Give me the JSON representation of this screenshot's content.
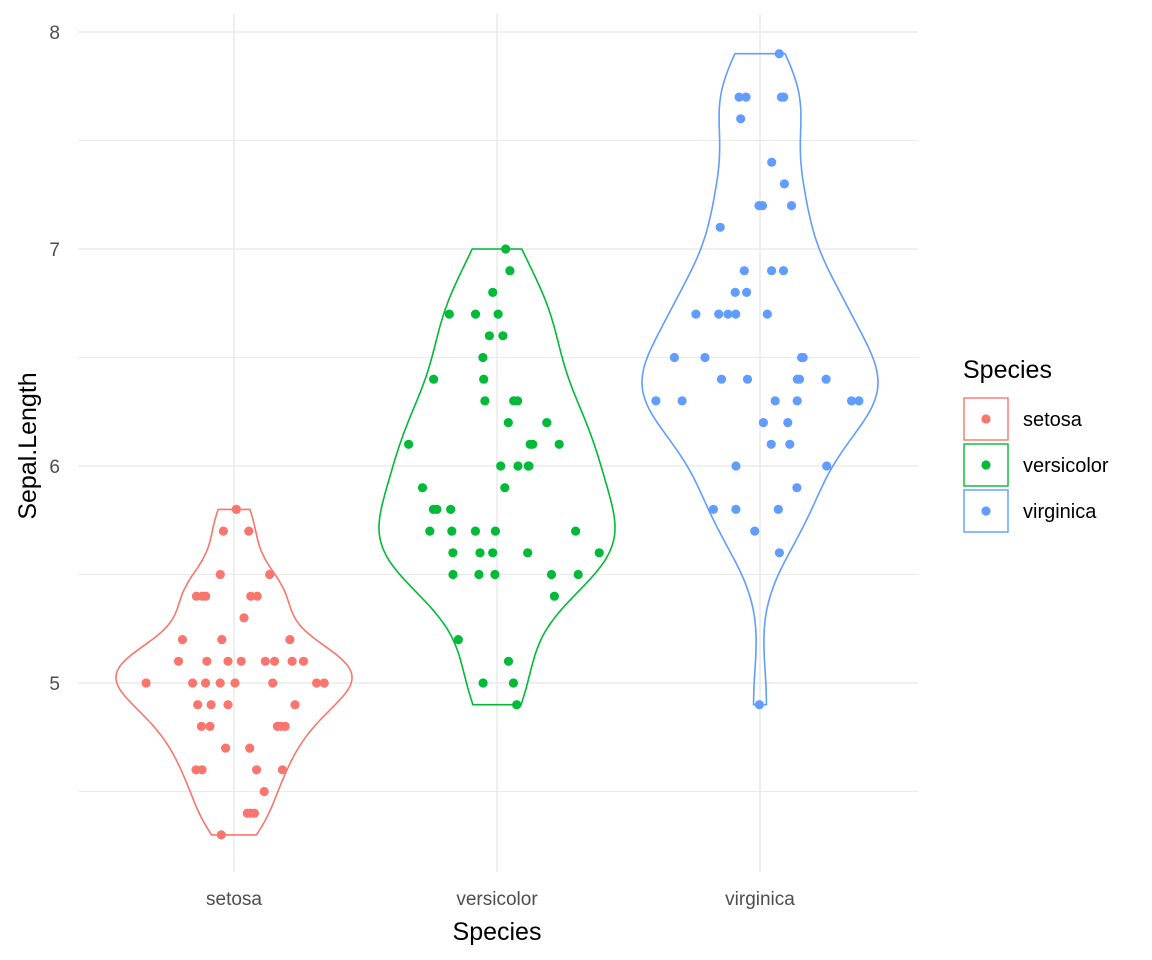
{
  "chart_data": {
    "type": "violin",
    "xlabel": "Species",
    "ylabel": "Sepal.Length",
    "categories": [
      "setosa",
      "versicolor",
      "virginica"
    ],
    "ylim": [
      4.2,
      8.08
    ],
    "y_ticks": [
      5,
      6,
      7,
      8
    ],
    "grid": true,
    "legend": {
      "title": "Species",
      "placement": "right"
    },
    "series": [
      {
        "name": "setosa",
        "color": "#F8766D",
        "values": [
          5.1,
          4.9,
          4.7,
          4.6,
          5.0,
          5.4,
          4.6,
          5.0,
          4.4,
          4.9,
          5.4,
          4.8,
          4.8,
          4.3,
          5.8,
          5.7,
          5.4,
          5.1,
          5.7,
          5.1,
          5.4,
          5.1,
          4.6,
          5.1,
          4.8,
          5.0,
          5.0,
          5.2,
          5.2,
          4.7,
          4.8,
          5.4,
          5.2,
          5.5,
          4.9,
          5.0,
          5.5,
          4.9,
          4.4,
          5.1,
          5.0,
          4.5,
          4.4,
          5.0,
          5.1,
          4.8,
          5.1,
          4.6,
          5.3,
          5.0
        ]
      },
      {
        "name": "versicolor",
        "color": "#00BA38",
        "values": [
          7.0,
          6.4,
          6.9,
          5.5,
          6.5,
          5.7,
          6.3,
          4.9,
          6.6,
          5.2,
          5.0,
          5.9,
          6.0,
          6.1,
          5.6,
          6.7,
          5.6,
          5.8,
          6.2,
          5.6,
          5.9,
          6.1,
          6.3,
          6.1,
          6.4,
          6.6,
          6.8,
          6.7,
          6.0,
          5.7,
          5.5,
          5.5,
          5.8,
          6.0,
          5.4,
          6.0,
          6.7,
          6.3,
          5.6,
          5.5,
          5.5,
          6.1,
          5.8,
          5.0,
          5.6,
          5.7,
          5.7,
          6.2,
          5.1,
          5.7
        ]
      },
      {
        "name": "virginica",
        "color": "#619CFF",
        "values": [
          6.3,
          5.8,
          7.1,
          6.3,
          6.5,
          7.6,
          4.9,
          7.3,
          6.7,
          7.2,
          6.5,
          6.4,
          6.8,
          5.7,
          5.8,
          6.4,
          6.5,
          7.7,
          7.7,
          6.0,
          6.9,
          5.6,
          7.7,
          6.3,
          6.7,
          7.2,
          6.2,
          6.1,
          6.4,
          7.2,
          7.4,
          7.9,
          6.4,
          6.3,
          6.1,
          7.7,
          6.3,
          6.4,
          6.0,
          6.9,
          6.7,
          6.9,
          5.8,
          6.8,
          6.7,
          6.7,
          6.3,
          6.5,
          6.2,
          5.9
        ]
      }
    ]
  }
}
